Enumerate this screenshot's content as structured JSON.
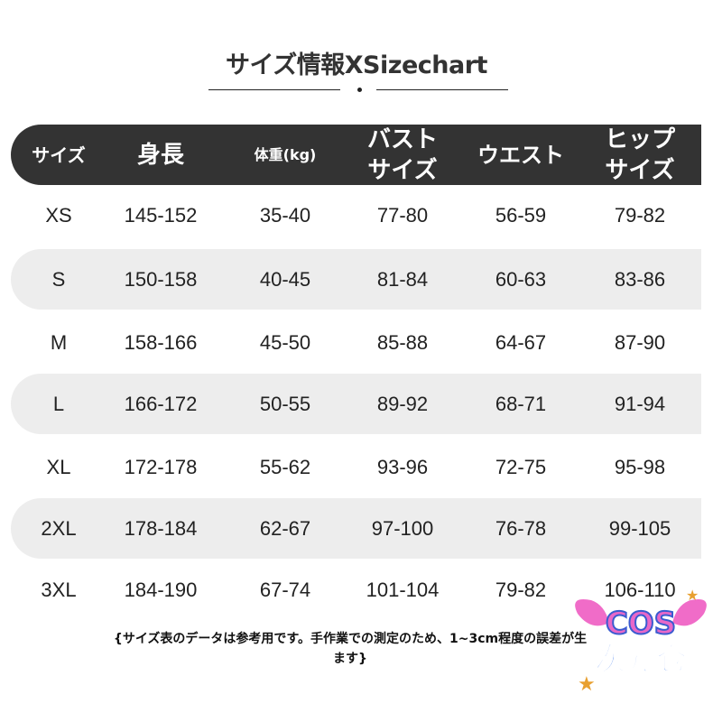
{
  "title": "サイズ情報XSizechart",
  "columns": [
    "サイズ",
    "身長",
    "体重(kg)",
    "バスト\nサイズ",
    "ウエスト",
    "ヒップ\nサイズ"
  ],
  "rows": [
    [
      "XS",
      "145-152",
      "35-40",
      "77-80",
      "56-59",
      "79-82"
    ],
    [
      "S",
      "150-158",
      "40-45",
      "81-84",
      "60-63",
      "83-86"
    ],
    [
      "M",
      "158-166",
      "45-50",
      "85-88",
      "64-67",
      "87-90"
    ],
    [
      "L",
      "166-172",
      "50-55",
      "89-92",
      "68-71",
      "91-94"
    ],
    [
      "XL",
      "172-178",
      "55-62",
      "93-96",
      "72-75",
      "95-98"
    ],
    [
      "2XL",
      "178-184",
      "62-67",
      "97-100",
      "76-78",
      "99-105"
    ],
    [
      "3XL",
      "184-190",
      "67-74",
      "101-104",
      "79-82",
      "106-110"
    ]
  ],
  "note": {
    "line1": "{サイズ表のデータは参考用です。手作業での測定のため、1~3cm程度の誤差が生",
    "line2": "ます}"
  },
  "logo": {
    "text1": "COS",
    "text2": "次元仓"
  },
  "colors": {
    "header_bg": "#333333",
    "row_shade": "#ededed",
    "logo_pink": "#e868c8",
    "logo_blue": "#5a8df0"
  }
}
